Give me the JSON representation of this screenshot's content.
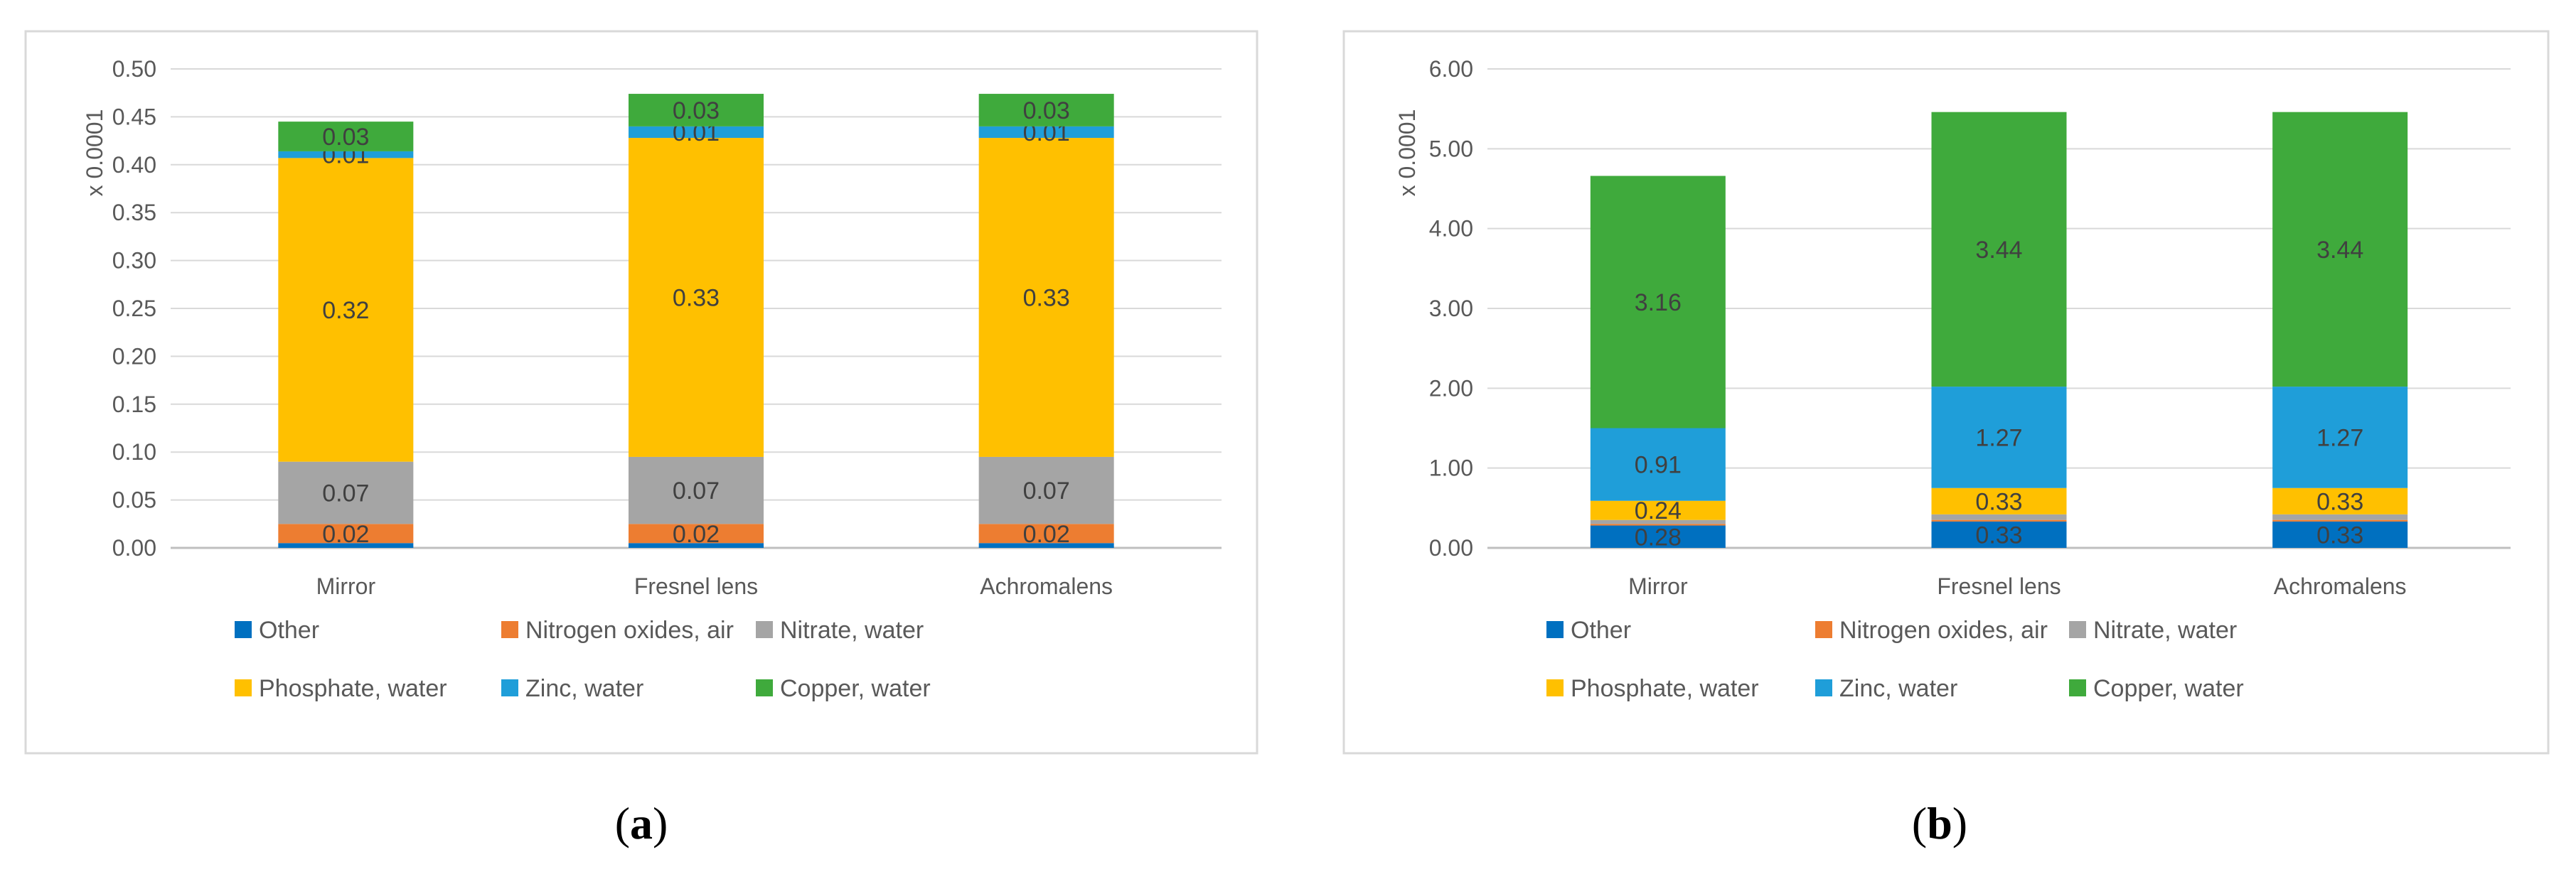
{
  "chart_data": [
    {
      "type": "bar",
      "stacked": true,
      "caption_letter": "a",
      "ylabel": "x 0.0001",
      "ylim": [
        0,
        0.5
      ],
      "yticks": [
        "0.00",
        "0.05",
        "0.10",
        "0.15",
        "0.20",
        "0.25",
        "0.30",
        "0.35",
        "0.40",
        "0.45",
        "0.50"
      ],
      "categories": [
        "Mirror",
        "Fresnel lens",
        "Achromalens"
      ],
      "legend_position": "bottom",
      "series": [
        {
          "name": "Other",
          "color": "#0070C0",
          "values": [
            0.005,
            0.005,
            0.005
          ],
          "labels": [
            "",
            "",
            ""
          ]
        },
        {
          "name": "Nitrogen oxides, air",
          "color": "#ED7D31",
          "values": [
            0.02,
            0.02,
            0.02
          ],
          "labels": [
            "0.02",
            "0.02",
            "0.02"
          ]
        },
        {
          "name": "Nitrate, water",
          "color": "#A5A5A5",
          "values": [
            0.065,
            0.07,
            0.07
          ],
          "labels": [
            "0.07",
            "0.07",
            "0.07"
          ]
        },
        {
          "name": "Phosphate, water",
          "color": "#FFC000",
          "values": [
            0.317,
            0.333,
            0.333
          ],
          "labels": [
            "0.32",
            "0.33",
            "0.33"
          ]
        },
        {
          "name": "Zinc, water",
          "color": "#1F9ED9",
          "values": [
            0.007,
            0.012,
            0.012
          ],
          "labels": [
            "0.01",
            "0.01",
            "0.01"
          ]
        },
        {
          "name": "Copper, water",
          "color": "#3FAA3C",
          "values": [
            0.031,
            0.034,
            0.034
          ],
          "labels": [
            "0.03",
            "0.03",
            "0.03"
          ]
        }
      ]
    },
    {
      "type": "bar",
      "stacked": true,
      "caption_letter": "b",
      "ylabel": "x 0.0001",
      "ylim": [
        0,
        6
      ],
      "yticks": [
        "0.00",
        "1.00",
        "2.00",
        "3.00",
        "4.00",
        "5.00",
        "6.00"
      ],
      "categories": [
        "Mirror",
        "Fresnel lens",
        "Achromalens"
      ],
      "legend_position": "bottom",
      "series": [
        {
          "name": "Other",
          "color": "#0070C0",
          "values": [
            0.28,
            0.33,
            0.33
          ],
          "labels": [
            "0.28",
            "0.33",
            "0.33"
          ]
        },
        {
          "name": "Nitrogen oxides, air",
          "color": "#ED7D31",
          "values": [
            0.02,
            0.02,
            0.02
          ],
          "labels": [
            "",
            "",
            ""
          ]
        },
        {
          "name": "Nitrate, water",
          "color": "#A5A5A5",
          "values": [
            0.05,
            0.07,
            0.07
          ],
          "labels": [
            "",
            "",
            ""
          ]
        },
        {
          "name": "Phosphate, water",
          "color": "#FFC000",
          "values": [
            0.24,
            0.33,
            0.33
          ],
          "labels": [
            "0.24",
            "0.33",
            "0.33"
          ]
        },
        {
          "name": "Zinc, water",
          "color": "#1F9ED9",
          "values": [
            0.91,
            1.27,
            1.27
          ],
          "labels": [
            "0.91",
            "1.27",
            "1.27"
          ]
        },
        {
          "name": "Copper, water",
          "color": "#3FAA3C",
          "values": [
            3.16,
            3.44,
            3.44
          ],
          "labels": [
            "3.16",
            "3.44",
            "3.44"
          ]
        }
      ]
    }
  ]
}
